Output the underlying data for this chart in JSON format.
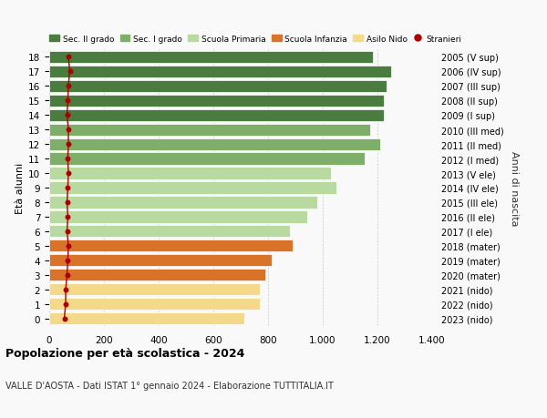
{
  "ages": [
    18,
    17,
    16,
    15,
    14,
    13,
    12,
    11,
    10,
    9,
    8,
    7,
    6,
    5,
    4,
    3,
    2,
    1,
    0
  ],
  "right_labels": [
    "2005 (V sup)",
    "2006 (IV sup)",
    "2007 (III sup)",
    "2008 (II sup)",
    "2009 (I sup)",
    "2010 (III med)",
    "2011 (II med)",
    "2012 (I med)",
    "2013 (V ele)",
    "2014 (IV ele)",
    "2015 (III ele)",
    "2016 (II ele)",
    "2017 (I ele)",
    "2018 (mater)",
    "2019 (mater)",
    "2020 (mater)",
    "2021 (nido)",
    "2022 (nido)",
    "2023 (nido)"
  ],
  "bar_values": [
    1185,
    1250,
    1235,
    1225,
    1225,
    1175,
    1210,
    1155,
    1030,
    1050,
    980,
    945,
    880,
    890,
    815,
    790,
    770,
    770,
    715
  ],
  "bar_colors": [
    "#4a7c40",
    "#4a7c40",
    "#4a7c40",
    "#4a7c40",
    "#4a7c40",
    "#7fad6a",
    "#7fad6a",
    "#7fad6a",
    "#b8d9a0",
    "#b8d9a0",
    "#b8d9a0",
    "#b8d9a0",
    "#b8d9a0",
    "#d9732a",
    "#d9732a",
    "#d9732a",
    "#f5d98a",
    "#f5d98a",
    "#f5d98a"
  ],
  "stranieri_values": [
    70,
    75,
    70,
    68,
    65,
    70,
    70,
    68,
    70,
    68,
    65,
    68,
    65,
    70,
    68,
    65,
    60,
    60,
    55
  ],
  "xlim": [
    0,
    1400
  ],
  "xticks": [
    0,
    200,
    400,
    600,
    800,
    1000,
    1200,
    1400
  ],
  "ylabel_left": "Età alunni",
  "ylabel_right": "Anni di nascita",
  "title": "Popolazione per età scolastica - 2024",
  "subtitle": "VALLE D'AOSTA - Dati ISTAT 1° gennaio 2024 - Elaborazione TUTTITALIA.IT",
  "legend_items": [
    {
      "label": "Sec. II grado",
      "color": "#4a7c40"
    },
    {
      "label": "Sec. I grado",
      "color": "#7fad6a"
    },
    {
      "label": "Scuola Primaria",
      "color": "#b8d9a0"
    },
    {
      "label": "Scuola Infanzia",
      "color": "#d9732a"
    },
    {
      "label": "Asilo Nido",
      "color": "#f5d98a"
    },
    {
      "label": "Stranieri",
      "color": "#aa0000"
    }
  ],
  "bg_color": "#f9f9f9",
  "bar_edge_color": "white",
  "grid_color": "#cccccc",
  "bar_height": 0.82
}
